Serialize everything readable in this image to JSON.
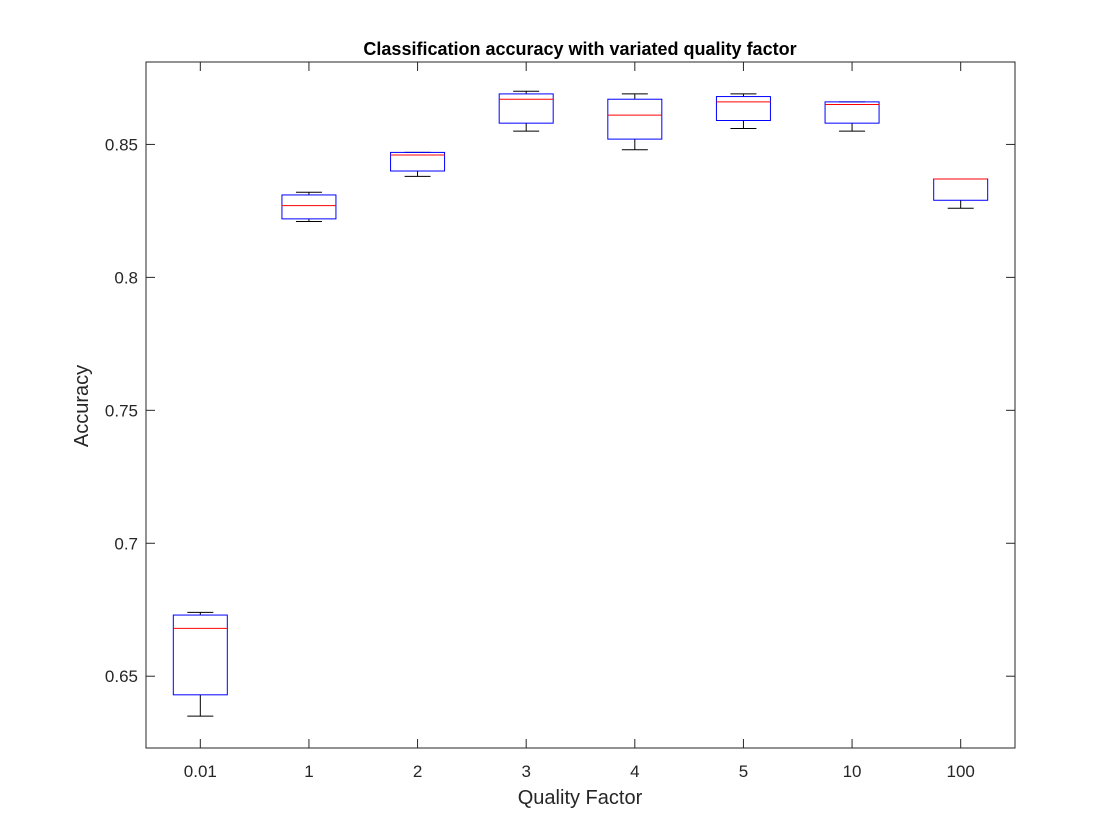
{
  "chart_data": {
    "type": "box",
    "title": "Classification accuracy with variated quality factor",
    "xlabel": "Quality Factor",
    "ylabel": "Accuracy",
    "categories": [
      "0.01",
      "1",
      "2",
      "3",
      "4",
      "5",
      "10",
      "100"
    ],
    "ylim": [
      0.623,
      0.881
    ],
    "yticks": [
      0.65,
      0.7,
      0.75,
      0.8,
      0.85
    ],
    "ytick_labels": [
      "0.65",
      "0.7",
      "0.75",
      "0.8",
      "0.85"
    ],
    "grid": false,
    "boxes": [
      {
        "category": "0.01",
        "min": 0.635,
        "q1": 0.643,
        "median": 0.668,
        "q3": 0.673,
        "max": 0.674
      },
      {
        "category": "1",
        "min": 0.821,
        "q1": 0.822,
        "median": 0.827,
        "q3": 0.831,
        "max": 0.832
      },
      {
        "category": "2",
        "min": 0.838,
        "q1": 0.84,
        "median": 0.846,
        "q3": 0.847,
        "max": 0.847
      },
      {
        "category": "3",
        "min": 0.855,
        "q1": 0.858,
        "median": 0.867,
        "q3": 0.869,
        "max": 0.87
      },
      {
        "category": "4",
        "min": 0.848,
        "q1": 0.852,
        "median": 0.861,
        "q3": 0.867,
        "max": 0.869
      },
      {
        "category": "5",
        "min": 0.856,
        "q1": 0.859,
        "median": 0.866,
        "q3": 0.868,
        "max": 0.869
      },
      {
        "category": "10",
        "min": 0.855,
        "q1": 0.858,
        "median": 0.865,
        "q3": 0.866,
        "max": 0.866
      },
      {
        "category": "100",
        "min": 0.826,
        "q1": 0.829,
        "median": 0.837,
        "q3": 0.837,
        "max": 0.837
      }
    ],
    "colors": {
      "box": "#0000ff",
      "median": "#ff0000",
      "whisker": "#000000",
      "axes": "#262626"
    }
  }
}
